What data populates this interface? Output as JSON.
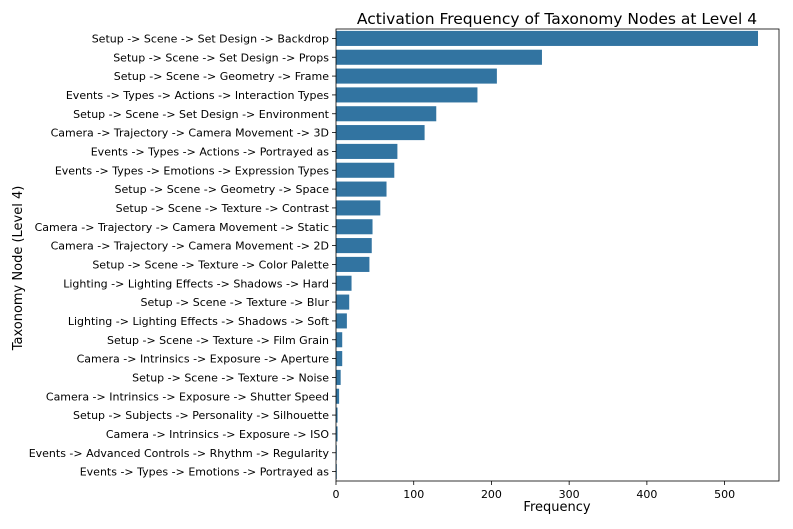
{
  "chart_data": {
    "type": "bar",
    "orientation": "horizontal",
    "title": "Activation Frequency of Taxonomy Nodes at Level 4",
    "xlabel": "Frequency",
    "ylabel": "Taxonomy Node (Level 4)",
    "xlim": [
      0,
      570
    ],
    "xticks": [
      "0",
      "100",
      "200",
      "300",
      "400",
      "500"
    ],
    "xtick_values": [
      0,
      100,
      200,
      300,
      400,
      500
    ],
    "grid": false,
    "bar_color": "#3274a1",
    "categories": [
      "Setup -> Scene -> Set Design -> Backdrop",
      "Setup -> Scene -> Set Design -> Props",
      "Setup -> Scene -> Geometry -> Frame",
      "Events -> Types -> Actions -> Interaction Types",
      "Setup -> Scene -> Set Design -> Environment",
      "Camera -> Trajectory -> Camera Movement -> 3D",
      "Events -> Types -> Actions -> Portrayed as",
      "Events -> Types -> Emotions -> Expression Types",
      "Setup -> Scene -> Geometry -> Space",
      "Setup -> Scene -> Texture -> Contrast",
      "Camera -> Trajectory -> Camera Movement -> Static",
      "Camera -> Trajectory -> Camera Movement -> 2D",
      "Setup -> Scene -> Texture -> Color Palette",
      "Lighting -> Lighting Effects -> Shadows -> Hard",
      "Setup -> Scene -> Texture -> Blur",
      "Lighting -> Lighting Effects -> Shadows -> Soft",
      "Setup -> Scene -> Texture -> Film Grain",
      "Camera -> Intrinsics -> Exposure -> Aperture",
      "Setup -> Scene -> Texture -> Noise",
      "Camera -> Intrinsics -> Exposure -> Shutter Speed",
      "Setup -> Subjects -> Personality -> Silhouette",
      "Camera -> Intrinsics -> Exposure -> ISO",
      "Events -> Advanced Controls -> Rhythm -> Regularity",
      "Events -> Types -> Emotions -> Portrayed as"
    ],
    "values": [
      543,
      265,
      207,
      182,
      129,
      114,
      79,
      75,
      65,
      57,
      47,
      46,
      43,
      20,
      17,
      14,
      8,
      8,
      6,
      4,
      2,
      2,
      1,
      1
    ]
  }
}
